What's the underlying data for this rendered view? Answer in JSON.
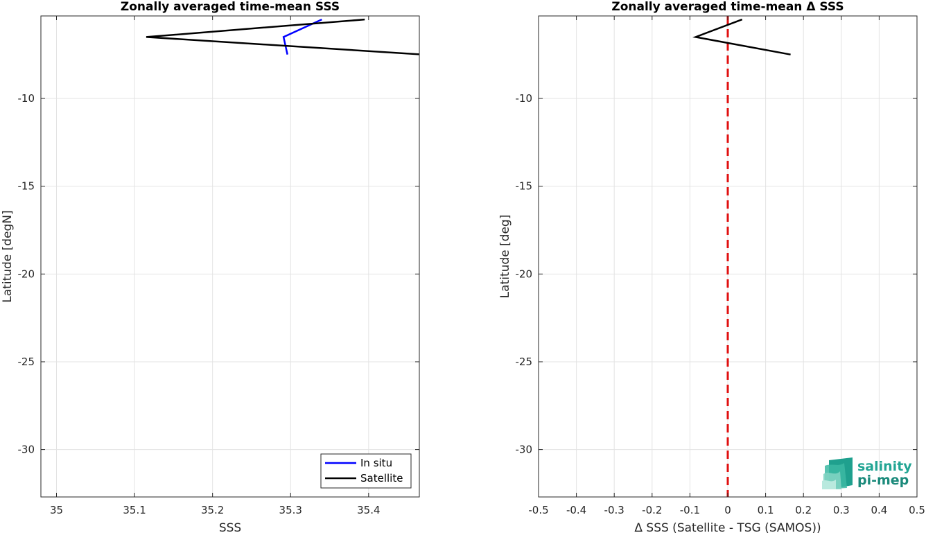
{
  "chart_data": [
    {
      "type": "line",
      "title": "Zonally averaged time-mean SSS",
      "xlabel": "SSS",
      "ylabel": "Latitude [degN]",
      "xlim": [
        34.98,
        35.465
      ],
      "ylim": [
        -32.7,
        -5.3
      ],
      "xticks": [
        35,
        35.1,
        35.2,
        35.3,
        35.4
      ],
      "xtick_labels": [
        "35",
        "35.1",
        "35.2",
        "35.3",
        "35.4"
      ],
      "yticks": [
        -10,
        -15,
        -20,
        -25,
        -30
      ],
      "ytick_labels": [
        "-10",
        "-15",
        "-20",
        "-25",
        "-30"
      ],
      "grid": true,
      "legend_position": "bottom-right",
      "series": [
        {
          "name": "In situ",
          "color": "#0000ff",
          "x": [
            35.34,
            35.291,
            35.296
          ],
          "y": [
            -5.5,
            -6.5,
            -7.5
          ]
        },
        {
          "name": "Satellite",
          "color": "#000000",
          "x": [
            35.395,
            35.115,
            35.47
          ],
          "y": [
            -5.5,
            -6.5,
            -7.5
          ]
        }
      ]
    },
    {
      "type": "line",
      "title": "Zonally averaged time-mean Δ SSS",
      "xlabel": "Δ SSS (Satellite - TSG (SAMOS))",
      "ylabel": "Latitude [deg]",
      "xlim": [
        -0.5,
        0.5
      ],
      "ylim": [
        -32.7,
        -5.3
      ],
      "xticks": [
        -0.5,
        -0.4,
        -0.3,
        -0.2,
        -0.1,
        0,
        0.1,
        0.2,
        0.3,
        0.4,
        0.5
      ],
      "xtick_labels": [
        "-0.5",
        "-0.4",
        "-0.3",
        "-0.2",
        "-0.1",
        "0",
        "0.1",
        "0.2",
        "0.3",
        "0.4",
        "0.5"
      ],
      "yticks": [
        -10,
        -15,
        -20,
        -25,
        -30
      ],
      "ytick_labels": [
        "-10",
        "-15",
        "-20",
        "-25",
        "-30"
      ],
      "grid": true,
      "zero_line_color": "#e01010",
      "series": [
        {
          "color": "#000000",
          "x": [
            0.038,
            -0.085,
            0.166
          ],
          "y": [
            -5.5,
            -6.5,
            -7.5
          ]
        }
      ]
    }
  ],
  "logo": {
    "line1": "salinity",
    "line2": "pi-mep",
    "color1": "#22a594",
    "color2": "#1b8a7b"
  }
}
